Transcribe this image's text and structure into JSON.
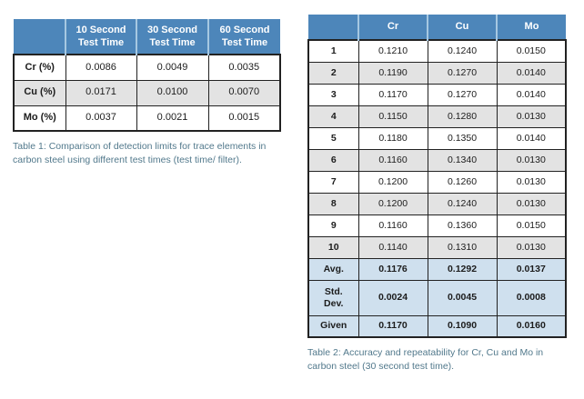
{
  "colors": {
    "header_blue": "#4d86ba",
    "header_divider": "#a6c8e2",
    "row_gray": "#e3e3e3",
    "summary_blue": "#cfe0ee",
    "border_dark": "#222222",
    "caption_teal": "#52798c",
    "text": "#1c1c1c",
    "background": "#ffffff"
  },
  "table1": {
    "columns": [
      "",
      "10 Second\nTest Time",
      "30 Second\nTest Time",
      "60 Second\nTest Time"
    ],
    "rows": [
      {
        "label": "Cr (%)",
        "values": [
          "0.0086",
          "0.0049",
          "0.0035"
        ],
        "style": "white"
      },
      {
        "label": "Cu (%)",
        "values": [
          "0.0171",
          "0.0100",
          "0.0070"
        ],
        "style": "gray"
      },
      {
        "label": "Mo (%)",
        "values": [
          "0.0037",
          "0.0021",
          "0.0015"
        ],
        "style": "white"
      }
    ],
    "caption": "Table 1: Comparison of detection limits for trace elements in carbon steel  using different test times (test time/ filter)."
  },
  "table2": {
    "columns": [
      "",
      "Cr",
      "Cu",
      "Mo"
    ],
    "rows": [
      {
        "label": "1",
        "values": [
          "0.1210",
          "0.1240",
          "0.0150"
        ],
        "style": "white"
      },
      {
        "label": "2",
        "values": [
          "0.1190",
          "0.1270",
          "0.0140"
        ],
        "style": "gray"
      },
      {
        "label": "3",
        "values": [
          "0.1170",
          "0.1270",
          "0.0140"
        ],
        "style": "white"
      },
      {
        "label": "4",
        "values": [
          "0.1150",
          "0.1280",
          "0.0130"
        ],
        "style": "gray"
      },
      {
        "label": "5",
        "values": [
          "0.1180",
          "0.1350",
          "0.0140"
        ],
        "style": "white"
      },
      {
        "label": "6",
        "values": [
          "0.1160",
          "0.1340",
          "0.0130"
        ],
        "style": "gray"
      },
      {
        "label": "7",
        "values": [
          "0.1200",
          "0.1260",
          "0.0130"
        ],
        "style": "white"
      },
      {
        "label": "8",
        "values": [
          "0.1200",
          "0.1240",
          "0.0130"
        ],
        "style": "gray"
      },
      {
        "label": "9",
        "values": [
          "0.1160",
          "0.1360",
          "0.0150"
        ],
        "style": "white"
      },
      {
        "label": "10",
        "values": [
          "0.1140",
          "0.1310",
          "0.0130"
        ],
        "style": "gray"
      },
      {
        "label": "Avg.",
        "values": [
          "0.1176",
          "0.1292",
          "0.0137"
        ],
        "style": "summary"
      },
      {
        "label": "Std.\nDev.",
        "values": [
          "0.0024",
          "0.0045",
          "0.0008"
        ],
        "style": "summary"
      },
      {
        "label": "Given",
        "values": [
          "0.1170",
          "0.1090",
          "0.0160"
        ],
        "style": "summary"
      }
    ],
    "caption": "Table 2: Accuracy and repeatability for Cr, Cu and Mo in carbon steel (30 second test time)."
  }
}
